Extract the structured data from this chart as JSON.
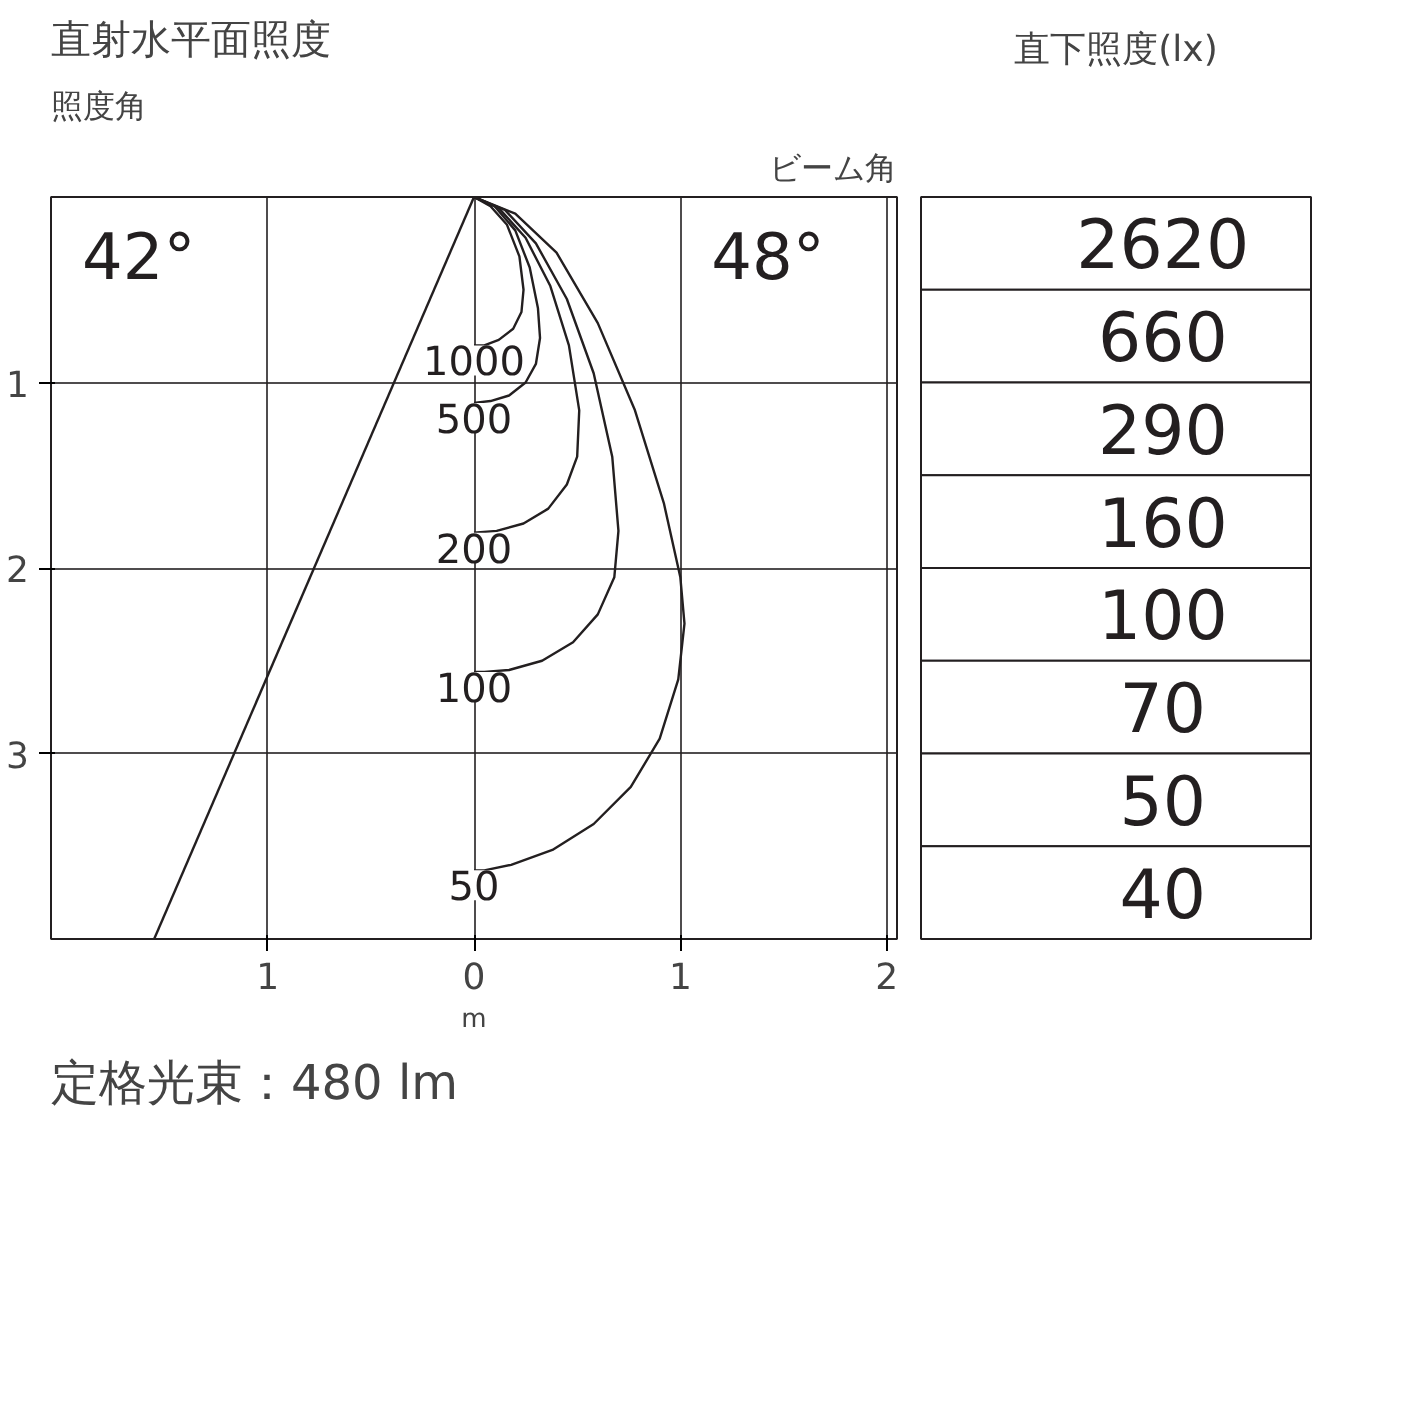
{
  "chart_data": [
    {
      "type": "line",
      "title": "直射水平面照度",
      "xlabel": "m",
      "xlim": [
        -2.05,
        2.05
      ],
      "ylim": [
        4.0,
        0
      ],
      "xticks": [
        {
          "value": -1,
          "label": "1"
        },
        0,
        1,
        2
      ],
      "yticks": [
        1,
        2,
        3
      ],
      "grid": true,
      "marker": "none",
      "line_style": "solid",
      "annotations": [
        "照度角",
        "42°",
        "ビーム角",
        "48°",
        "定格光束：480 lm"
      ],
      "series": [
        {
          "name": "1000",
          "color": "#231f20",
          "x": [
            0,
            0.08,
            0.16,
            0.22,
            0.24,
            0.23,
            0.19,
            0.12,
            0.05,
            0
          ],
          "values": [
            0,
            0.05,
            0.15,
            0.32,
            0.5,
            0.62,
            0.71,
            0.77,
            0.8,
            0.8
          ]
        },
        {
          "name": "500",
          "color": "#231f20",
          "x": [
            0,
            0.1,
            0.2,
            0.27,
            0.31,
            0.32,
            0.3,
            0.25,
            0.17,
            0.08,
            0
          ],
          "values": [
            0,
            0.05,
            0.18,
            0.38,
            0.6,
            0.76,
            0.9,
            1.0,
            1.07,
            1.1,
            1.11
          ]
        },
        {
          "name": "200",
          "color": "#231f20",
          "x": [
            0,
            0.12,
            0.25,
            0.37,
            0.46,
            0.51,
            0.5,
            0.45,
            0.36,
            0.24,
            0.11,
            0
          ],
          "values": [
            0,
            0.06,
            0.22,
            0.48,
            0.8,
            1.15,
            1.4,
            1.55,
            1.68,
            1.76,
            1.8,
            1.81
          ]
        },
        {
          "name": "100",
          "color": "#231f20",
          "x": [
            0,
            0.15,
            0.3,
            0.45,
            0.58,
            0.67,
            0.7,
            0.68,
            0.6,
            0.48,
            0.33,
            0.17,
            0.05,
            0
          ],
          "values": [
            0,
            0.07,
            0.25,
            0.55,
            0.95,
            1.4,
            1.8,
            2.05,
            2.25,
            2.4,
            2.5,
            2.55,
            2.56,
            2.56
          ]
        },
        {
          "name": "50",
          "color": "#231f20",
          "x": [
            0,
            0.2,
            0.4,
            0.6,
            0.78,
            0.92,
            1.0,
            1.02,
            0.99,
            0.9,
            0.76,
            0.58,
            0.38,
            0.18,
            0.05,
            0
          ],
          "values": [
            0,
            0.09,
            0.3,
            0.68,
            1.15,
            1.65,
            2.05,
            2.3,
            2.6,
            2.92,
            3.18,
            3.38,
            3.52,
            3.6,
            3.63,
            3.63
          ]
        },
        {
          "color": "#231f20",
          "x": [
            0,
            -1.55
          ],
          "values": [
            0,
            4.0
          ]
        }
      ]
    },
    {
      "type": "other",
      "title": "直下照度(lx)",
      "values": [
        2620,
        660,
        290,
        160,
        100,
        70,
        50,
        40
      ],
      "data_labels": true
    }
  ]
}
